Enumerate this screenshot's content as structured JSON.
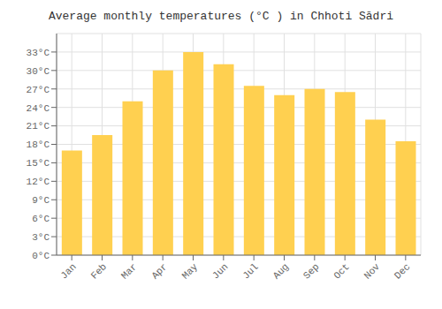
{
  "chart_data": {
    "type": "bar",
    "title": "Average monthly temperatures (°C ) in Chhoti Sādri",
    "categories": [
      "Jan",
      "Feb",
      "Mar",
      "Apr",
      "May",
      "Jun",
      "Jul",
      "Aug",
      "Sep",
      "Oct",
      "Nov",
      "Dec"
    ],
    "values": [
      17,
      19.5,
      25,
      30,
      33,
      31,
      27.5,
      26,
      27,
      26.5,
      22,
      18.5
    ],
    "color": "#FFD050",
    "ylim": [
      0,
      36
    ],
    "yticks": [
      {
        "value": 0,
        "label": "0°C"
      },
      {
        "value": 3,
        "label": "3°C"
      },
      {
        "value": 6,
        "label": "6°C"
      },
      {
        "value": 9,
        "label": "9°C"
      },
      {
        "value": 12,
        "label": "12°C"
      },
      {
        "value": 15,
        "label": "15°C"
      },
      {
        "value": 18,
        "label": "18°C"
      },
      {
        "value": 21,
        "label": "21°C"
      },
      {
        "value": 24,
        "label": "24°C"
      },
      {
        "value": 27,
        "label": "27°C"
      },
      {
        "value": 30,
        "label": "30°C"
      },
      {
        "value": 33,
        "label": "33°C"
      }
    ],
    "grid": true
  }
}
